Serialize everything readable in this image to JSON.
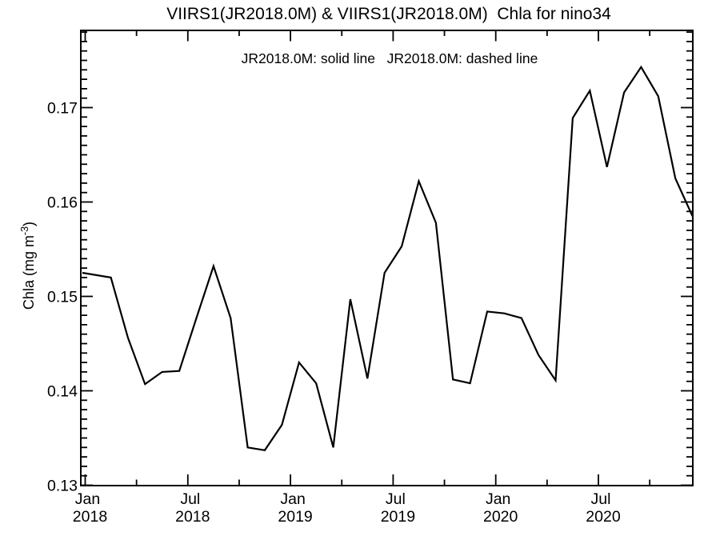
{
  "header": {
    "title": "VIIRS1(JR2018.0M) & VIIRS1(JR2018.0M)  Chla for nino34",
    "subtitle": "JR2018.0M: solid line   JR2018.0M: dashed line"
  },
  "chart_data": {
    "type": "line",
    "title": "VIIRS1(JR2018.0M) & VIIRS1(JR2018.0M)  Chla for nino34",
    "subtitle": "JR2018.0M: solid line   JR2018.0M: dashed line",
    "xlabel": "",
    "ylabel": "Chla (mg m-3)",
    "ylabel_parts": {
      "prefix": "Chla (mg m",
      "superscript": "-3",
      "suffix": ")"
    },
    "x": [
      "2018-01",
      "2018-02",
      "2018-03",
      "2018-04",
      "2018-05",
      "2018-06",
      "2018-07",
      "2018-08",
      "2018-09",
      "2018-10",
      "2018-11",
      "2018-12",
      "2019-01",
      "2019-02",
      "2019-03",
      "2019-04",
      "2019-05",
      "2019-06",
      "2019-07",
      "2019-08",
      "2019-09",
      "2019-10",
      "2019-11",
      "2019-12",
      "2020-01",
      "2020-02",
      "2020-03",
      "2020-04",
      "2020-05",
      "2020-06",
      "2020-07",
      "2020-08",
      "2020-09",
      "2020-10",
      "2020-11",
      "2020-12"
    ],
    "series": [
      {
        "name": "JR2018.0M",
        "line_style": "solid",
        "color": "#000000",
        "values": [
          0.1525,
          0.152,
          0.1456,
          0.1407,
          0.142,
          0.1421,
          0.1477,
          0.1532,
          0.1477,
          0.134,
          0.1337,
          0.1364,
          0.143,
          0.1408,
          0.134,
          0.1497,
          0.1413,
          0.1525,
          0.1553,
          0.1622,
          0.1578,
          0.1412,
          0.1408,
          0.1484,
          0.1482,
          0.1477,
          0.1438,
          0.1411,
          0.1689,
          0.1718,
          0.1637,
          0.1716,
          0.1743,
          0.1712,
          0.1625,
          0.1585
        ]
      }
    ],
    "ylim": [
      0.13,
      0.1781
    ],
    "ytick_values": [
      0.13,
      0.14,
      0.15,
      0.16,
      0.17
    ],
    "ytick_labels": [
      "0.13",
      "0.14",
      "0.15",
      "0.16",
      "0.17"
    ],
    "y_minor_step": 0.001,
    "x_major_ticks": [
      {
        "month_index": 0,
        "line1": "Jan",
        "line2": "2018"
      },
      {
        "month_index": 6,
        "line1": "Jul",
        "line2": "2018"
      },
      {
        "month_index": 12,
        "line1": "Jan",
        "line2": "2019"
      },
      {
        "month_index": 18,
        "line1": "Jul",
        "line2": "2019"
      },
      {
        "month_index": 24,
        "line1": "Jan",
        "line2": "2020"
      },
      {
        "month_index": 30,
        "line1": "Jul",
        "line2": "2020"
      }
    ],
    "x_minor_month_indices": [
      3,
      9,
      15,
      21,
      27,
      33
    ],
    "grid": false,
    "legend_position": "none",
    "axis_color": "#000000",
    "background_color": "#ffffff"
  }
}
